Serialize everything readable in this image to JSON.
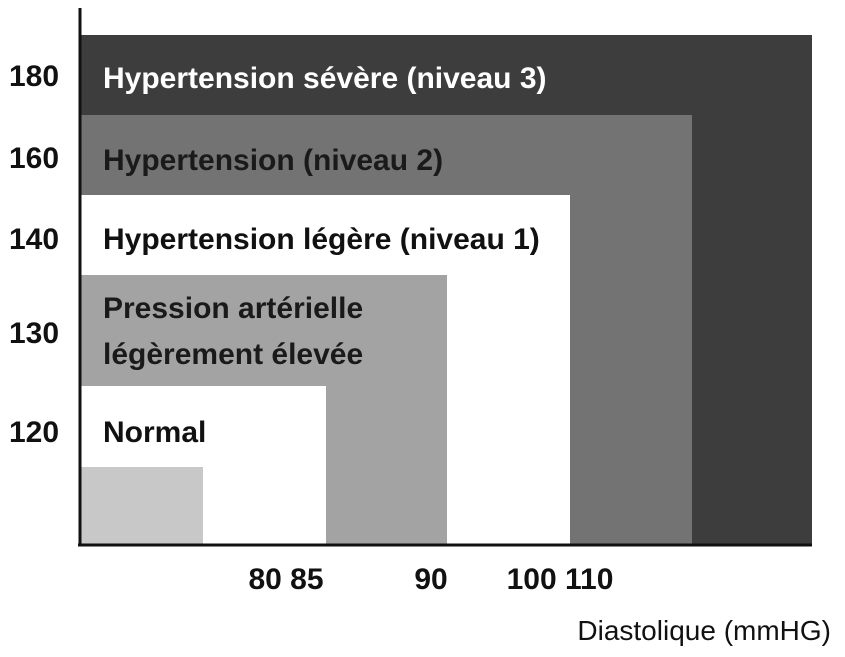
{
  "chart_data": {
    "type": "area",
    "title": "",
    "xlabel": "Diastolique (mmHG)",
    "ylabel": "",
    "x_ticks": [
      "80 85",
      "90",
      "100 110"
    ],
    "y_ticks": [
      "180",
      "160",
      "140",
      "130",
      "120"
    ],
    "zones": [
      {
        "name": "Hypertension sévère (niveau 3)",
        "label_lines": [
          "Hypertension sévère (niveau 3)"
        ],
        "systolic_min": 180,
        "diastolic_min": 110,
        "color": "#3d3d3d",
        "label_color": "#ffffff"
      },
      {
        "name": "Hypertension (niveau 2)",
        "label_lines": [
          "Hypertension (niveau 2)"
        ],
        "systolic_min": 160,
        "diastolic_min": 100,
        "color": "#737373",
        "label_color": "#1a1a1a"
      },
      {
        "name": "Hypertension légère (niveau 1)",
        "label_lines": [
          "Hypertension légère (niveau 1)"
        ],
        "systolic_min": 140,
        "diastolic_min": 90,
        "color": "#ffffff",
        "label_color": "#111111"
      },
      {
        "name": "Pression artérielle légèrement élevée",
        "label_lines": [
          "Pression artérielle",
          "légèrement élevée"
        ],
        "systolic_min": 130,
        "diastolic_min": 85,
        "color": "#a3a3a3",
        "label_color": "#1a1a1a"
      },
      {
        "name": "Normal",
        "label_lines": [
          "Normal"
        ],
        "systolic_min": 120,
        "diastolic_min": 80,
        "color": "#ffffff",
        "label_color": "#111111"
      },
      {
        "name": "",
        "label_lines": [],
        "systolic_min": null,
        "diastolic_min": null,
        "color": "#c8c8c8",
        "label_color": "#111111"
      }
    ]
  }
}
